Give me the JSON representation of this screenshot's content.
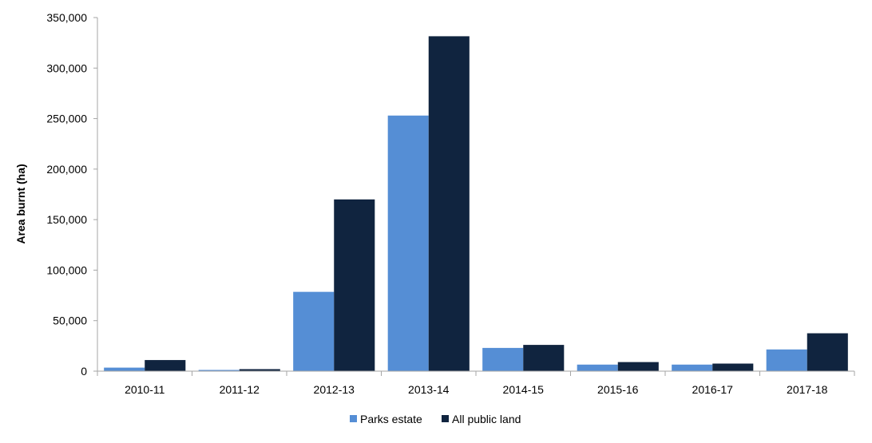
{
  "chart_data": {
    "type": "bar",
    "title": "",
    "xlabel": "",
    "ylabel": "Area burnt (ha)",
    "ylim": [
      0,
      350000
    ],
    "yticks": [
      "0",
      "50,000",
      "100,000",
      "150,000",
      "200,000",
      "250,000",
      "300,000",
      "350,000"
    ],
    "categories": [
      "2010-11",
      "2011-12",
      "2012-13",
      "2013-14",
      "2014-15",
      "2015-16",
      "2016-17",
      "2017-18"
    ],
    "series": [
      {
        "name": "Parks estate",
        "color": "#558ED5",
        "values": [
          3500,
          1200,
          78500,
          253000,
          23000,
          6500,
          6500,
          21500
        ]
      },
      {
        "name": "All public land",
        "color": "#10243F",
        "values": [
          11000,
          2000,
          170000,
          331500,
          26000,
          9000,
          7500,
          37500
        ]
      }
    ],
    "grid": false,
    "legend": "bottom-center"
  }
}
